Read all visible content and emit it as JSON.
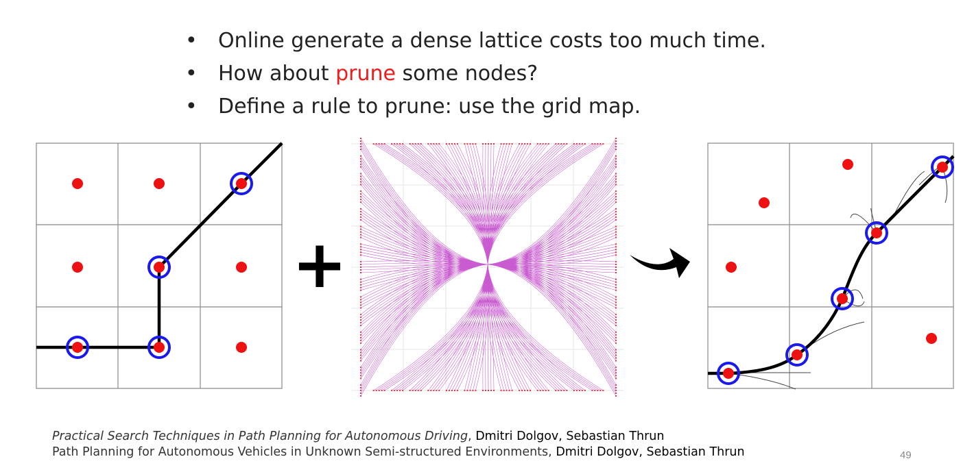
{
  "bullets": [
    {
      "parts": [
        {
          "text": "Online generate a dense lattice costs too much time.",
          "highlight": false
        }
      ]
    },
    {
      "parts": [
        {
          "text": "How about ",
          "highlight": false
        },
        {
          "text": "prune",
          "highlight": true
        },
        {
          "text": " some nodes?",
          "highlight": false
        }
      ]
    },
    {
      "parts": [
        {
          "text": "Define a rule to prune: use the grid map.",
          "highlight": false
        }
      ]
    }
  ],
  "bullet_symbol": "•",
  "operator_symbol": "+",
  "colors": {
    "node": "#ee1111",
    "selected_ring": "#1a1aee",
    "path": "#000000",
    "grid": "#888888",
    "lattice": "#c040c8",
    "highlight_text": "#ee1c1c"
  },
  "references": [
    {
      "title": "Practical Search Techniques in Path Planning for Autonomous Driving",
      "title_italic": true,
      "authors": "Dmitri Dolgov, Sebastian Thrun"
    },
    {
      "title": "Path Planning for Autonomous Vehicles in Unknown Semi-structured Environments",
      "title_italic": false,
      "authors": "Dmitri Dolgov, Sebastian Thrun"
    }
  ],
  "page_number": "49"
}
